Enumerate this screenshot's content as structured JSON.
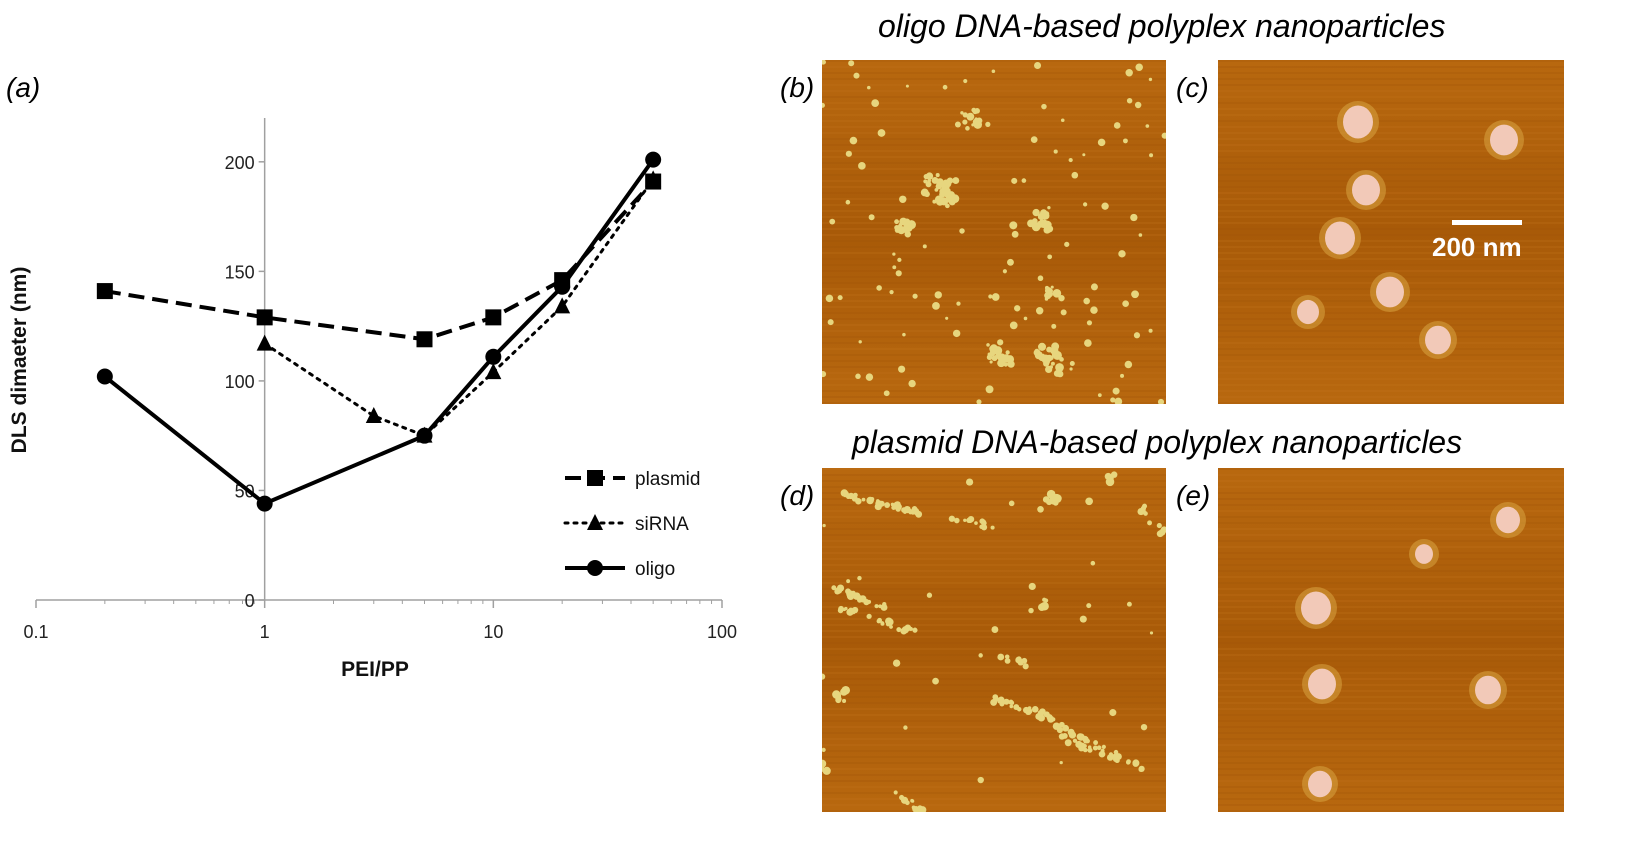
{
  "panels": {
    "a": "(a)",
    "b": "(b)",
    "c": "(c)",
    "d": "(d)",
    "e": "(e)"
  },
  "section_titles": {
    "oligo": "oligo  DNA-based  polyplex  nanoparticles",
    "plasmid": "plasmid  DNA-based  polyplex  nanoparticles"
  },
  "scale_bar": "200 nm",
  "colors": {
    "afm_bg": "#b8680f",
    "afm_bg_dark": "#a85a08",
    "aggregate": "#e7d67e",
    "particle": "#f2c9b8",
    "particle_halo": "#d9a441"
  },
  "chart_data": {
    "type": "line",
    "xscale": "log",
    "xlim": [
      0.1,
      100
    ],
    "ylim": [
      0,
      220
    ],
    "xticks": [
      "0.1",
      "1",
      "10",
      "100"
    ],
    "yticks": [
      "0",
      "50",
      "100",
      "150",
      "200"
    ],
    "xlabel": "PEI/PP",
    "ylabel": "DLS dimaeter (nm)",
    "legend_position": "bottom-right",
    "series": [
      {
        "name": "plasmid",
        "marker": "square",
        "linestyle": "dashed",
        "x": [
          0.2,
          1,
          5,
          10,
          20,
          50
        ],
        "y": [
          141,
          129,
          119,
          129,
          146,
          191
        ]
      },
      {
        "name": "siRNA",
        "marker": "triangle",
        "linestyle": "dotted",
        "x": [
          1,
          3,
          5,
          10,
          20,
          50
        ],
        "y": [
          117,
          84,
          75,
          104,
          134,
          192
        ]
      },
      {
        "name": "oligo",
        "marker": "circle",
        "linestyle": "solid",
        "x": [
          0.2,
          1,
          5,
          10,
          20,
          50
        ],
        "y": [
          102,
          44,
          75,
          111,
          143,
          201
        ]
      }
    ]
  }
}
